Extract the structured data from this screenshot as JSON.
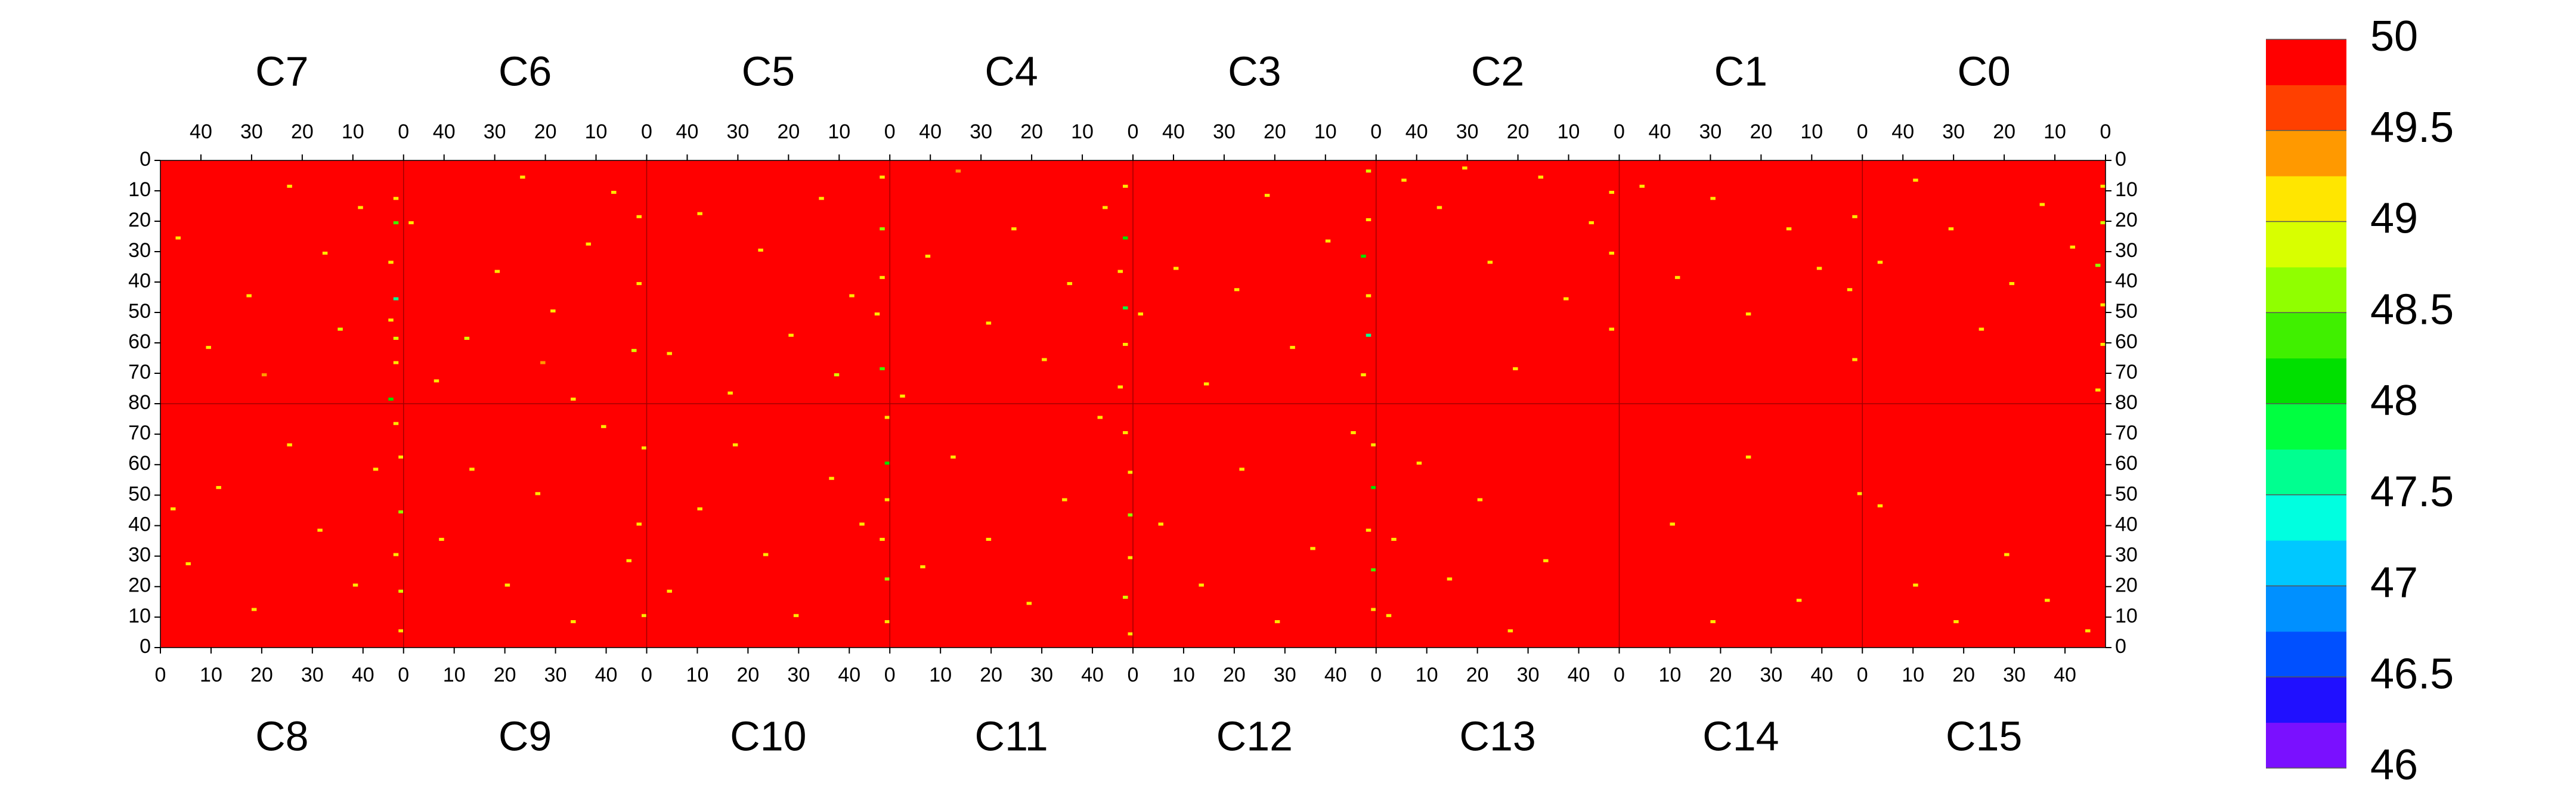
{
  "chart_data": {
    "type": "heatmap",
    "xlim": [
      0,
      48
    ],
    "ylim": [
      0,
      80
    ],
    "xticks": [
      0,
      10,
      20,
      30,
      40
    ],
    "yticks_top": [
      0,
      10,
      20,
      30,
      40,
      50,
      60,
      70,
      80
    ],
    "yticks_bottom": [
      0,
      10,
      20,
      30,
      40,
      50,
      60,
      70
    ],
    "colorbar": {
      "zlim": [
        46,
        50
      ],
      "zticks": [
        46,
        46.5,
        47,
        47.5,
        48,
        48.5,
        49,
        49.5,
        50
      ],
      "levels": [
        46,
        46.25,
        46.5,
        46.75,
        47,
        47.25,
        47.5,
        47.75,
        48,
        48.25,
        48.5,
        48.75,
        49,
        49.25,
        49.5,
        49.75,
        50
      ],
      "colors": [
        "#7a10ff",
        "#2010ff",
        "#0050ff",
        "#0090ff",
        "#00c8ff",
        "#00ffe0",
        "#00ff90",
        "#00ff40",
        "#00e000",
        "#40f000",
        "#90ff00",
        "#d8ff00",
        "#ffe600",
        "#ff9900",
        "#ff4000",
        "#ff0000"
      ]
    },
    "top_panels": [
      {
        "name": "C7",
        "fill": 50,
        "cells": [
          [
            1,
            12,
            49.1
          ],
          [
            1,
            20,
            48.4
          ],
          [
            2,
            33,
            49.0
          ],
          [
            1,
            45,
            47.6
          ],
          [
            2,
            52,
            49.1
          ],
          [
            1,
            58,
            48.9
          ],
          [
            1,
            66,
            49.2
          ],
          [
            2,
            78,
            48.1
          ],
          [
            8,
            15,
            49.1
          ],
          [
            15,
            30,
            49.2
          ],
          [
            22,
            8,
            49.1
          ],
          [
            30,
            44,
            49.0
          ],
          [
            38,
            61,
            49.2
          ],
          [
            44,
            25,
            49.1
          ],
          [
            27,
            70,
            49.4
          ],
          [
            12,
            55,
            48.9
          ]
        ]
      },
      {
        "name": "C6",
        "fill": 50,
        "cells": [
          [
            1,
            18,
            49.1
          ],
          [
            1,
            40,
            49.0
          ],
          [
            2,
            62,
            48.8
          ],
          [
            6,
            10,
            49.2
          ],
          [
            11,
            27,
            49.1
          ],
          [
            18,
            49,
            49.0
          ],
          [
            24,
            5,
            49.1
          ],
          [
            29,
            36,
            49.2
          ],
          [
            35,
            58,
            48.9
          ],
          [
            41,
            72,
            49.1
          ],
          [
            46,
            20,
            49.1
          ],
          [
            20,
            66,
            49.3
          ],
          [
            14,
            78,
            49.1
          ]
        ]
      },
      {
        "name": "C5",
        "fill": 50,
        "cells": [
          [
            1,
            5,
            49.1
          ],
          [
            1,
            22,
            48.7
          ],
          [
            1,
            38,
            49.0
          ],
          [
            2,
            50,
            49.1
          ],
          [
            1,
            68,
            48.3
          ],
          [
            7,
            44,
            49.1
          ],
          [
            13,
            12,
            49.2
          ],
          [
            19,
            57,
            49.1
          ],
          [
            25,
            29,
            49.0
          ],
          [
            31,
            76,
            49.1
          ],
          [
            37,
            17,
            49.2
          ],
          [
            43,
            63,
            49.1
          ],
          [
            10,
            70,
            48.9
          ]
        ]
      },
      {
        "name": "C4",
        "fill": 50,
        "cells": [
          [
            1,
            8,
            49.2
          ],
          [
            1,
            25,
            48.1
          ],
          [
            2,
            36,
            49.0
          ],
          [
            1,
            48,
            47.8
          ],
          [
            1,
            60,
            49.1
          ],
          [
            2,
            74,
            49.0
          ],
          [
            5,
            15,
            49.1
          ],
          [
            12,
            40,
            49.2
          ],
          [
            17,
            65,
            49.1
          ],
          [
            23,
            22,
            49.0
          ],
          [
            28,
            53,
            49.1
          ],
          [
            34,
            3,
            49.3
          ],
          [
            40,
            31,
            49.1
          ],
          [
            45,
            77,
            49.0
          ]
        ]
      },
      {
        "name": "C3",
        "fill": 50,
        "cells": [
          [
            1,
            3,
            48.9
          ],
          [
            1,
            19,
            49.1
          ],
          [
            2,
            31,
            48.2
          ],
          [
            1,
            44,
            49.0
          ],
          [
            1,
            57,
            47.7
          ],
          [
            2,
            70,
            49.1
          ],
          [
            9,
            26,
            49.1
          ],
          [
            16,
            61,
            49.0
          ],
          [
            21,
            11,
            49.2
          ],
          [
            27,
            42,
            49.1
          ],
          [
            33,
            73,
            49.1
          ],
          [
            39,
            35,
            49.0
          ],
          [
            46,
            50,
            49.2
          ]
        ]
      },
      {
        "name": "C2",
        "fill": 50,
        "cells": [
          [
            1,
            10,
            49.1
          ],
          [
            1,
            30,
            49.0
          ],
          [
            1,
            55,
            49.1
          ],
          [
            5,
            20,
            49.2
          ],
          [
            10,
            45,
            49.1
          ],
          [
            15,
            5,
            49.0
          ],
          [
            20,
            68,
            49.1
          ],
          [
            25,
            33,
            49.1
          ],
          [
            30,
            2,
            49.2
          ],
          [
            35,
            15,
            49.1
          ],
          [
            42,
            6,
            49.0
          ]
        ]
      },
      {
        "name": "C1",
        "fill": 50,
        "cells": [
          [
            1,
            18,
            49.1
          ],
          [
            2,
            42,
            49.1
          ],
          [
            1,
            65,
            49.0
          ],
          [
            8,
            35,
            49.1
          ],
          [
            14,
            22,
            49.2
          ],
          [
            22,
            50,
            49.1
          ],
          [
            29,
            12,
            49.0
          ],
          [
            36,
            38,
            49.1
          ],
          [
            43,
            8,
            49.1
          ]
        ]
      },
      {
        "name": "C0",
        "fill": 50,
        "cells": [
          [
            0,
            8,
            49.1
          ],
          [
            0,
            20,
            48.9
          ],
          [
            1,
            34,
            48.5
          ],
          [
            0,
            47,
            49.1
          ],
          [
            0,
            60,
            49.0
          ],
          [
            1,
            75,
            49.1
          ],
          [
            6,
            28,
            49.1
          ],
          [
            12,
            14,
            49.2
          ],
          [
            18,
            40,
            49.1
          ],
          [
            24,
            55,
            49.0
          ],
          [
            30,
            22,
            49.1
          ],
          [
            37,
            6,
            49.1
          ],
          [
            44,
            33,
            49.2
          ]
        ]
      }
    ],
    "bottom_panels": [
      {
        "name": "C8",
        "fill": 50,
        "cells": [
          [
            47,
            5,
            49.1
          ],
          [
            47,
            18,
            48.9
          ],
          [
            46,
            30,
            49.1
          ],
          [
            47,
            44,
            48.6
          ],
          [
            47,
            62,
            49.0
          ],
          [
            46,
            73,
            49.1
          ],
          [
            5,
            27,
            49.1
          ],
          [
            11,
            52,
            49.2
          ],
          [
            18,
            12,
            49.1
          ],
          [
            25,
            66,
            49.0
          ],
          [
            31,
            38,
            49.1
          ],
          [
            38,
            20,
            49.1
          ],
          [
            42,
            58,
            49.2
          ],
          [
            2,
            45,
            49.0
          ]
        ]
      },
      {
        "name": "C9",
        "fill": 50,
        "cells": [
          [
            47,
            10,
            49.1
          ],
          [
            46,
            40,
            49.0
          ],
          [
            47,
            65,
            49.1
          ],
          [
            7,
            35,
            49.1
          ],
          [
            13,
            58,
            49.2
          ],
          [
            20,
            20,
            49.1
          ],
          [
            26,
            50,
            49.0
          ],
          [
            33,
            8,
            49.1
          ],
          [
            39,
            72,
            49.1
          ],
          [
            44,
            28,
            49.2
          ]
        ]
      },
      {
        "name": "C10",
        "fill": 50,
        "cells": [
          [
            47,
            8,
            49.2
          ],
          [
            47,
            22,
            48.5
          ],
          [
            46,
            35,
            49.1
          ],
          [
            47,
            48,
            49.0
          ],
          [
            47,
            60,
            48.2
          ],
          [
            47,
            75,
            49.1
          ],
          [
            4,
            18,
            49.1
          ],
          [
            10,
            45,
            49.0
          ],
          [
            17,
            66,
            49.1
          ],
          [
            23,
            30,
            49.2
          ],
          [
            29,
            10,
            49.1
          ],
          [
            36,
            55,
            49.1
          ],
          [
            42,
            40,
            49.0
          ]
        ]
      },
      {
        "name": "C11",
        "fill": 50,
        "cells": [
          [
            47,
            4,
            49.1
          ],
          [
            46,
            16,
            48.8
          ],
          [
            47,
            29,
            49.1
          ],
          [
            47,
            43,
            48.7
          ],
          [
            47,
            57,
            49.0
          ],
          [
            46,
            70,
            49.1
          ],
          [
            6,
            26,
            49.2
          ],
          [
            12,
            62,
            49.1
          ],
          [
            19,
            35,
            49.1
          ],
          [
            27,
            14,
            49.0
          ],
          [
            34,
            48,
            49.1
          ],
          [
            41,
            75,
            49.1
          ]
        ]
      },
      {
        "name": "C12",
        "fill": 50,
        "cells": [
          [
            47,
            12,
            49.1
          ],
          [
            47,
            25,
            48.4
          ],
          [
            46,
            38,
            49.0
          ],
          [
            47,
            52,
            48.1
          ],
          [
            47,
            66,
            49.1
          ],
          [
            5,
            40,
            49.1
          ],
          [
            13,
            20,
            49.2
          ],
          [
            21,
            58,
            49.1
          ],
          [
            28,
            8,
            49.0
          ],
          [
            35,
            32,
            49.1
          ],
          [
            43,
            70,
            49.1
          ]
        ]
      },
      {
        "name": "C13",
        "fill": 50,
        "cells": [
          [
            2,
            10,
            49.1
          ],
          [
            3,
            35,
            49.0
          ],
          [
            8,
            60,
            49.1
          ],
          [
            14,
            22,
            49.1
          ],
          [
            20,
            48,
            49.2
          ],
          [
            26,
            5,
            49.1
          ],
          [
            33,
            28,
            49.0
          ]
        ]
      },
      {
        "name": "C14",
        "fill": 50,
        "cells": [
          [
            10,
            40,
            49.1
          ],
          [
            18,
            8,
            49.0
          ],
          [
            25,
            62,
            49.1
          ],
          [
            35,
            15,
            49.1
          ],
          [
            47,
            50,
            49.0
          ]
        ]
      },
      {
        "name": "C15",
        "fill": 50,
        "cells": [
          [
            3,
            46,
            49.1
          ],
          [
            10,
            20,
            49.0
          ],
          [
            18,
            8,
            49.1
          ],
          [
            28,
            30,
            49.1
          ],
          [
            36,
            15,
            49.2
          ],
          [
            44,
            5,
            49.1
          ]
        ]
      }
    ]
  }
}
